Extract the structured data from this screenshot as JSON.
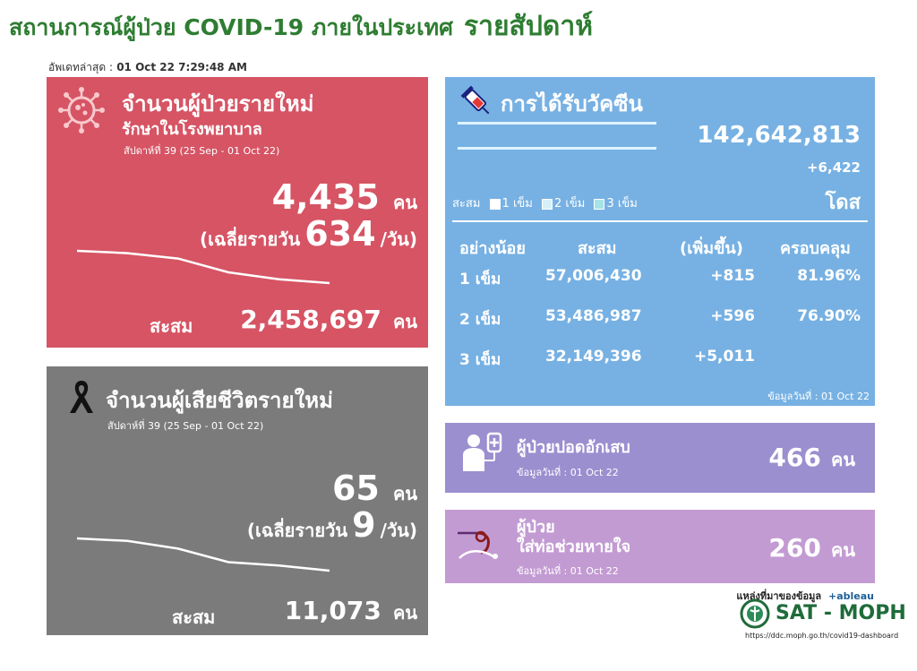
{
  "header": {
    "title": "สถานการณ์ผู้ป่วย COVID-19 ภายในประเทศ",
    "title_emph": "รายสัปดาห์",
    "updated_label": "อัพเดทล่าสุด :",
    "updated_value": "01 Oct 22 7:29:48 AM"
  },
  "new_cases": {
    "title": "จำนวนผู้ป่วยรายใหม่",
    "subtitle": "รักษาในโรงพยาบาล",
    "week": "สัปดาห์ที่ 39 (25 Sep - 01 Oct 22)",
    "value": "4,435",
    "unit": "คน",
    "avg_prefix": "(เฉลี่ยรายวัน",
    "avg_value": "634",
    "avg_suffix": "/วัน)",
    "acc_label": "สะสม",
    "acc_value": "2,458,697",
    "acc_unit": "คน",
    "trend": [
      100,
      97,
      90,
      72,
      63,
      58
    ]
  },
  "deaths": {
    "title": "จำนวนผู้เสียชีวิตรายใหม่",
    "week": "สัปดาห์ที่ 39 (25 Sep - 01 Oct 22)",
    "value": "65",
    "unit": "คน",
    "avg_prefix": "(เฉลี่ยรายวัน",
    "avg_value": "9",
    "avg_suffix": "/วัน)",
    "acc_label": "สะสม",
    "acc_value": "11,073",
    "acc_unit": "คน",
    "trend": [
      100,
      97,
      88,
      72,
      68,
      62
    ]
  },
  "vaccine": {
    "title": "การได้รับวัคซีน",
    "total": "142,642,813",
    "increase": "+6,422",
    "dose_unit": "โดส",
    "legend_label": "สะสม",
    "legend": [
      "1 เข็ม",
      "2 เข็ม",
      "3 เข็ม"
    ],
    "legend_colors": [
      "#ffffff",
      "#d6f0f7",
      "#a6e3e6"
    ],
    "columns": [
      "อย่างน้อย",
      "สะสม",
      "(เพิ่มขึ้น)",
      "ครอบคลุม"
    ],
    "rows": [
      {
        "dose": "1 เข็ม",
        "acc": "57,006,430",
        "inc": "+815",
        "cov": "81.96%"
      },
      {
        "dose": "2 เข็ม",
        "acc": "53,486,987",
        "inc": "+596",
        "cov": "76.90%"
      },
      {
        "dose": "3 เข็ม",
        "acc": "32,149,396",
        "inc": "+5,011",
        "cov": ""
      }
    ],
    "data_date": "ข้อมูลวันที่ : 01 Oct 22"
  },
  "pneumonia": {
    "title": "ผู้ป่วยปอดอักเสบ",
    "date": "ข้อมูลวันที่ : 01 Oct 22",
    "value": "466",
    "unit": "คน"
  },
  "ventilator": {
    "title_line1": "ผู้ป่วย",
    "title_line2": "ใส่ท่อช่วยหายใจ",
    "date": "ข้อมูลวันที่ : 01 Oct 22",
    "value": "260",
    "unit": "คน"
  },
  "footer": {
    "source_label": "แหล่งที่มาของข้อมูล",
    "tableau": "+ableau",
    "brand": "SAT - MOPH",
    "url": "https://ddc.moph.go.th/covid19-dashboard"
  },
  "colors": {
    "red_panel": "#d65464",
    "gray_panel": "#7b7b7b",
    "blue_panel": "#77b1e3",
    "purple_panel": "#9b8fcf",
    "violet_panel": "#c39bd3",
    "title_green": "#2e7d32"
  },
  "icons": [
    "virus-icon",
    "ribbon-icon",
    "syringe-icon",
    "patient-icon",
    "ventilator-icon",
    "moph-logo-icon"
  ]
}
